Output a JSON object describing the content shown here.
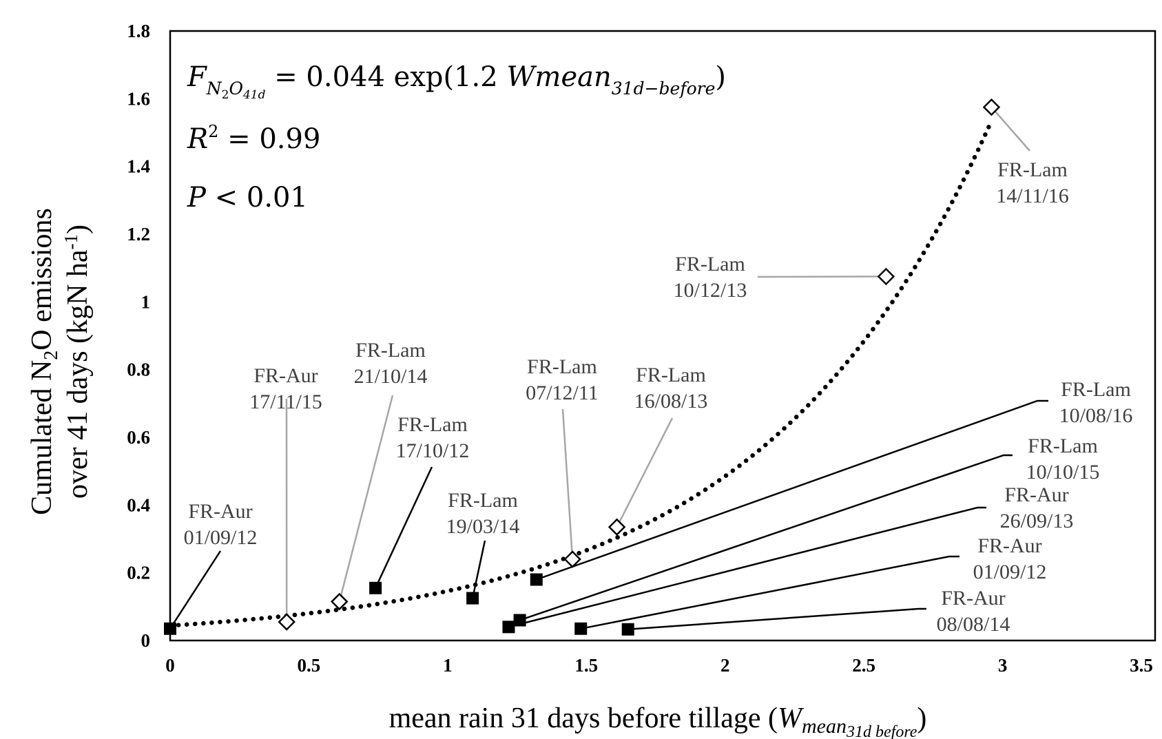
{
  "chart_data": {
    "type": "scatter",
    "x_axis": {
      "title": "mean rain 31 days before tillage (",
      "title_var": "W",
      "title_sub": "mean",
      "title_subsub": "31d before",
      "title_close": ")",
      "range": [
        0,
        3.5
      ],
      "ticks": [
        "0",
        "0.5",
        "1",
        "1.5",
        "2",
        "2.5",
        "3",
        "3.5"
      ]
    },
    "y_axis": {
      "title_line1_a": "Cumulated  N",
      "title_line1_sub": "2",
      "title_line1_b": "O emissions",
      "title_line2_a": "over 41 days (kgN ha",
      "title_line2_sup": "-1",
      "title_line2_b": ")",
      "range": [
        0,
        1.8
      ],
      "ticks": [
        "0",
        "0.2",
        "0.4",
        "0.6",
        "0.8",
        "1",
        "1.2",
        "1.4",
        "1.6",
        "1.8"
      ]
    },
    "grid": false,
    "equation": {
      "F": "F",
      "F_sub_N": "N",
      "F_sub_2": "2",
      "F_sub_O": "O",
      "F_sub_41d": "41d",
      "eq_mid": " = 0.044 exp(1.2 ",
      "Wmean": "Wmean",
      "W_sub": "31d−before",
      "eq_close": ")",
      "r2_R": "R",
      "r2_sup": "2",
      "r2_rest": " = 0.99",
      "p_P": "P",
      "p_rest": " < 0.01"
    },
    "trendline": {
      "style": "dotted",
      "a": 0.044,
      "b": 1.2,
      "x_range": [
        0,
        2.96
      ]
    },
    "series": [
      {
        "marker": "open-diamond",
        "points": [
          {
            "x": 0.42,
            "y": 0.055,
            "site": "FR-Aur",
            "date": "17/11/15"
          },
          {
            "x": 0.61,
            "y": 0.115,
            "site": "FR-Lam",
            "date": "21/10/14"
          },
          {
            "x": 1.45,
            "y": 0.24,
            "site": "FR-Lam",
            "date": "07/12/11"
          },
          {
            "x": 1.61,
            "y": 0.335,
            "site": "FR-Lam",
            "date": "16/08/13"
          },
          {
            "x": 2.58,
            "y": 1.075,
            "site": "FR-Lam",
            "date": "10/12/13"
          },
          {
            "x": 2.96,
            "y": 1.575,
            "site": "FR-Lam",
            "date": "14/11/16"
          }
        ]
      },
      {
        "marker": "filled-square",
        "points": [
          {
            "x": 0.0,
            "y": 0.035,
            "site": "FR-Aur",
            "date": "01/09/12"
          },
          {
            "x": 0.74,
            "y": 0.155,
            "site": "FR-Lam",
            "date": "17/10/12"
          },
          {
            "x": 1.09,
            "y": 0.125,
            "site": "FR-Lam",
            "date": "19/03/14"
          },
          {
            "x": 1.32,
            "y": 0.18,
            "site": "FR-Lam",
            "date": "10/08/16"
          },
          {
            "x": 1.26,
            "y": 0.06,
            "site": "FR-Lam",
            "date": "10/10/15"
          },
          {
            "x": 1.22,
            "y": 0.04,
            "site": "FR-Aur",
            "date": "26/09/13"
          },
          {
            "x": 1.48,
            "y": 0.035,
            "site": "FR-Aur",
            "date": "01/09/12"
          },
          {
            "x": 1.65,
            "y": 0.033,
            "site": "FR-Aur",
            "date": "08/08/14"
          }
        ]
      }
    ]
  }
}
